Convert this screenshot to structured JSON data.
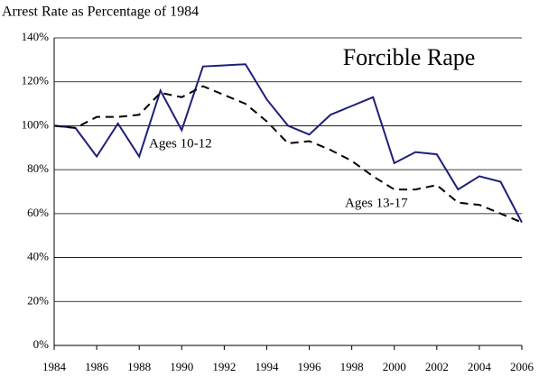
{
  "chart_data": {
    "type": "line",
    "title": "Arrest Rate as Percentage of 1984",
    "annotation": "Forcible Rape",
    "x": [
      1984,
      1985,
      1986,
      1987,
      1988,
      1989,
      1990,
      1991,
      1992,
      1993,
      1994,
      1995,
      1996,
      1997,
      1998,
      1999,
      2000,
      2001,
      2002,
      2003,
      2004,
      2005,
      2006
    ],
    "series": [
      {
        "name": "Ages 10-12",
        "color": "#1f1f7a",
        "dash": false,
        "values": [
          100,
          99,
          86,
          101,
          86,
          116,
          98,
          127,
          127.5,
          128,
          112,
          100,
          96,
          105,
          109,
          113,
          83,
          88,
          87,
          71,
          77,
          74.5,
          56
        ]
      },
      {
        "name": "Ages 13-17",
        "color": "#000000",
        "dash": true,
        "values": [
          100,
          99,
          104,
          104,
          105,
          115,
          113,
          118,
          114,
          110,
          102,
          92,
          93,
          89,
          84,
          77,
          71,
          71,
          73,
          65,
          64,
          60,
          56
        ]
      }
    ],
    "xlim": [
      1984,
      2006
    ],
    "xticks": [
      1984,
      1986,
      1988,
      1990,
      1992,
      1994,
      1996,
      1998,
      2000,
      2002,
      2004,
      2006
    ],
    "ylim": [
      0,
      140
    ],
    "yticks": [
      {
        "value": 0,
        "label": "0%"
      },
      {
        "value": 20,
        "label": "20%"
      },
      {
        "value": 40,
        "label": "40%"
      },
      {
        "value": 60,
        "label": "60%"
      },
      {
        "value": 80,
        "label": "80%"
      },
      {
        "value": 100,
        "label": "100%"
      },
      {
        "value": 120,
        "label": "120%"
      },
      {
        "value": 140,
        "label": "140%"
      }
    ],
    "grid": true
  }
}
